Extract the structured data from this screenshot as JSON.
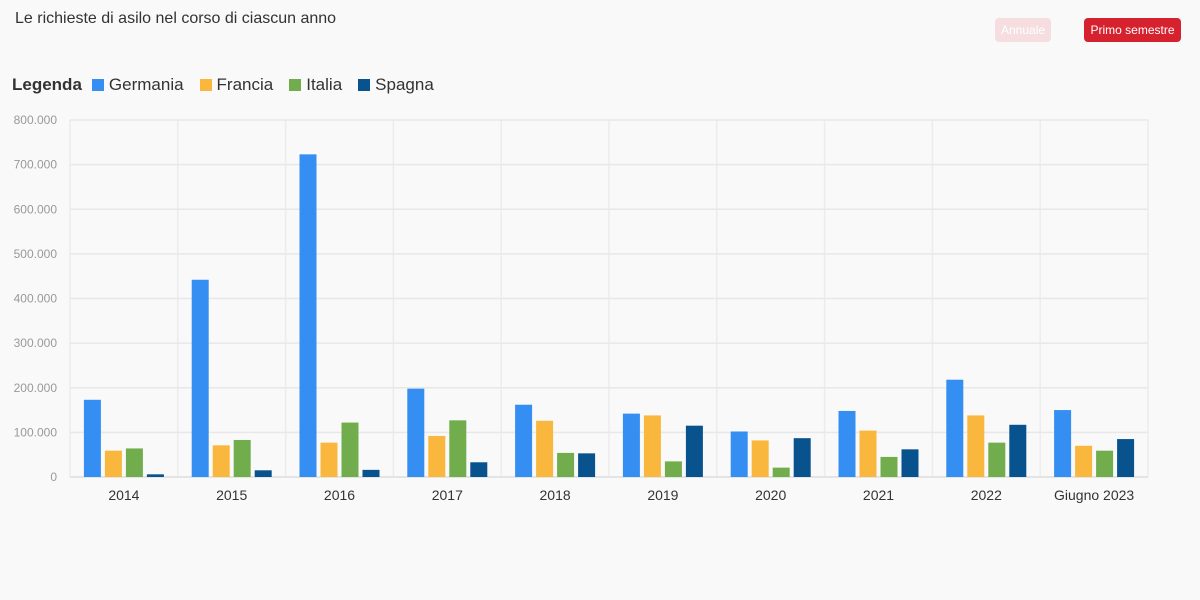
{
  "header": {
    "title": "Le richieste di asilo nel corso di ciascun anno"
  },
  "toolbar": {
    "annual_label": "Annuale",
    "semester_label": "Primo semestre",
    "active": "semester"
  },
  "legend": {
    "title": "Legenda"
  },
  "chart_data": {
    "type": "bar",
    "title": "Le richieste di asilo nel corso di ciascun anno",
    "categories": [
      "2014",
      "2015",
      "2016",
      "2017",
      "2018",
      "2019",
      "2020",
      "2021",
      "2022",
      "Giugno 2023"
    ],
    "series": [
      {
        "name": "Germania",
        "color": "#358ef1",
        "values": [
          173000,
          442000,
          723000,
          198000,
          162000,
          142000,
          102000,
          148000,
          218000,
          150000
        ]
      },
      {
        "name": "Francia",
        "color": "#fab73d",
        "values": [
          59000,
          71000,
          77000,
          92000,
          126000,
          138000,
          82000,
          104000,
          138000,
          70000
        ]
      },
      {
        "name": "Italia",
        "color": "#72ad4d",
        "values": [
          64000,
          83000,
          122000,
          127000,
          54000,
          35000,
          21000,
          45000,
          77000,
          59000
        ]
      },
      {
        "name": "Spagna",
        "color": "#08528e",
        "values": [
          6000,
          15000,
          16000,
          33000,
          53000,
          115000,
          87000,
          62000,
          117000,
          85000
        ]
      }
    ],
    "yticks": [
      "0",
      "100.000",
      "200.000",
      "300.000",
      "400.000",
      "500.000",
      "600.000",
      "700.000",
      "800.000"
    ],
    "ylim": [
      0,
      800000
    ],
    "grid": true,
    "legend_position": "top-left"
  }
}
